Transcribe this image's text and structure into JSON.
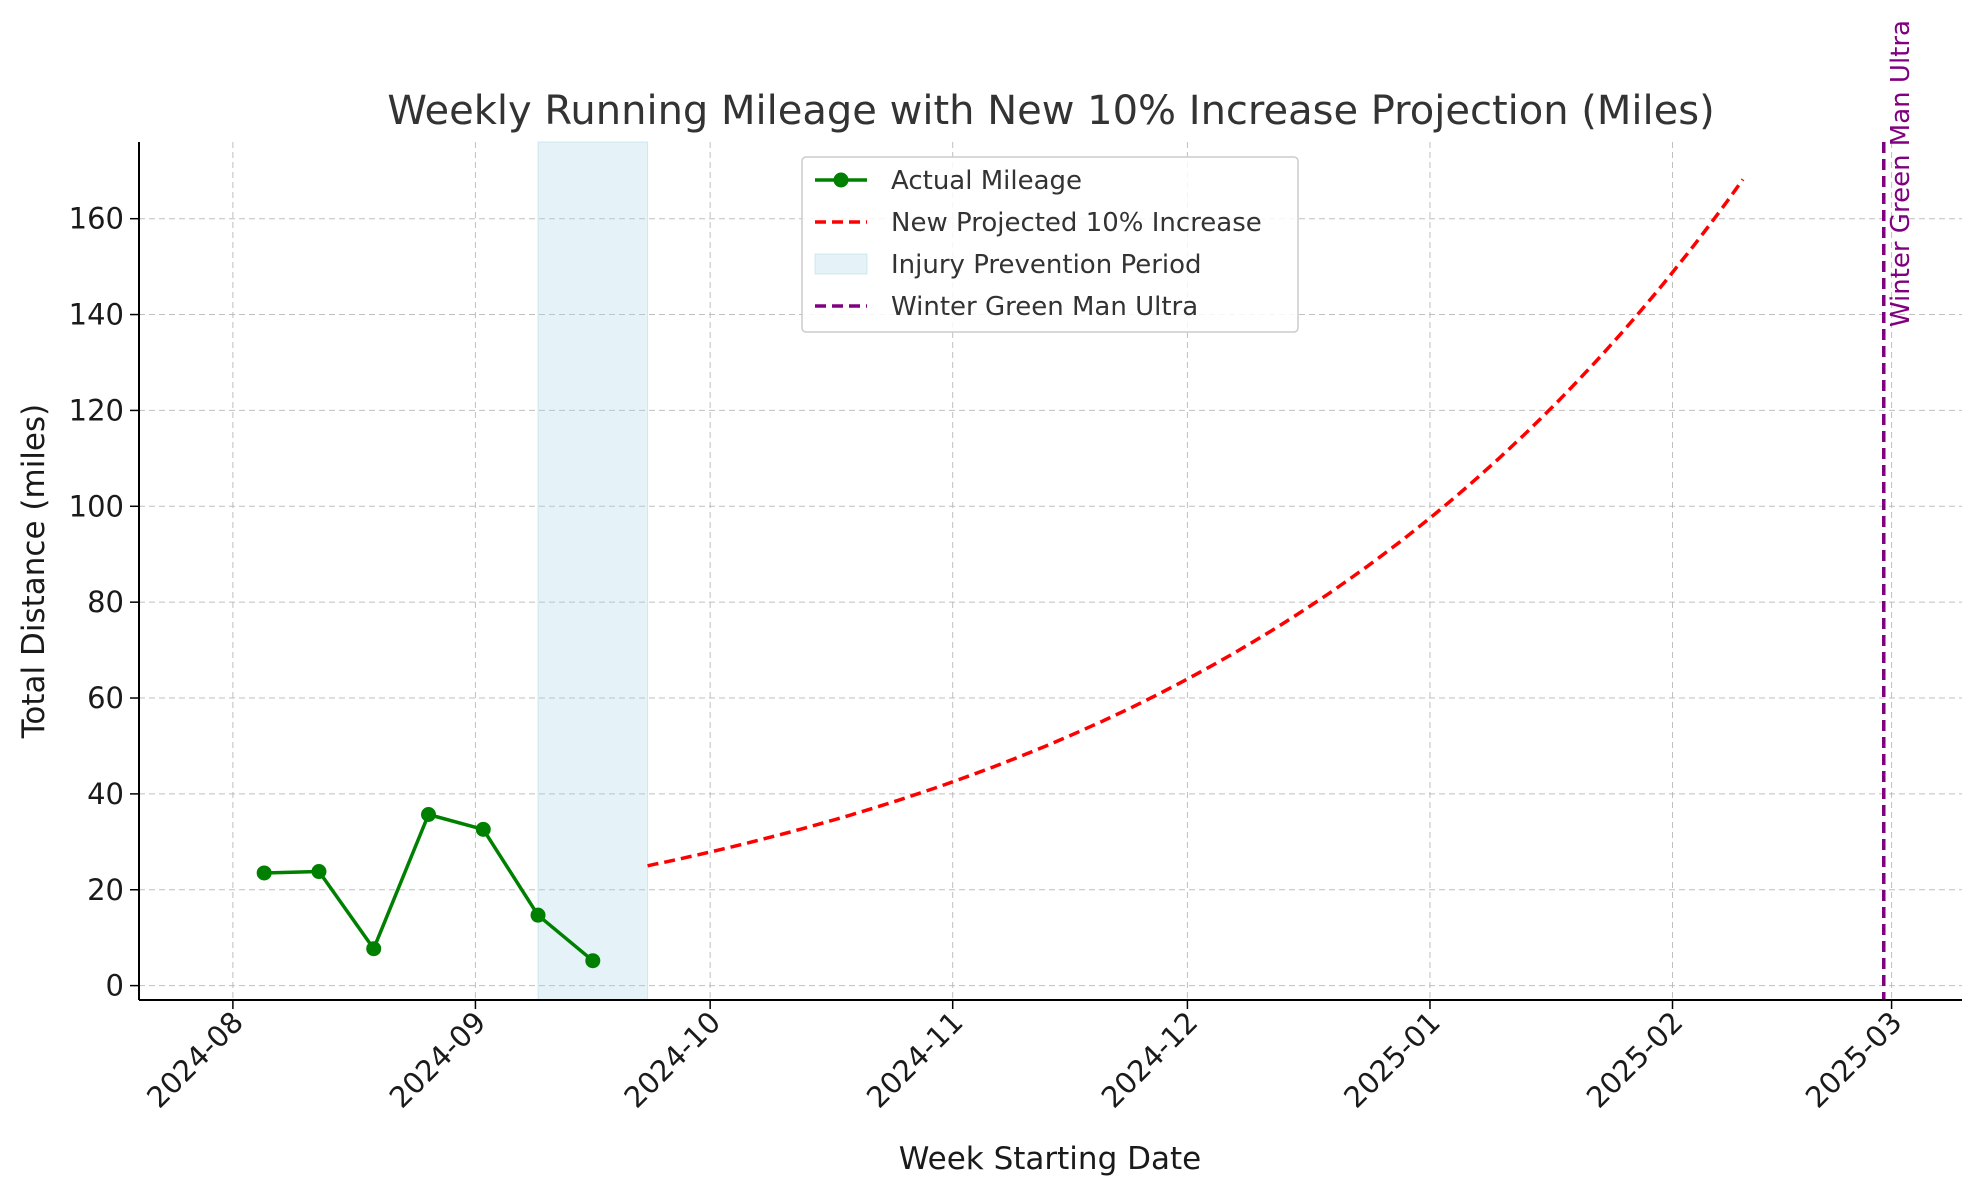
{
  "chart_data": {
    "type": "line",
    "title": "Weekly Running Mileage with New 10% Increase Projection (Miles)",
    "xlabel": "Week Starting Date",
    "ylabel": "Total Distance (miles)",
    "x_axis_type": "date",
    "xlim": [
      "2024-07-20",
      "2025-03-10"
    ],
    "ylim": [
      -3,
      176
    ],
    "x_ticks": [
      "2024-08",
      "2024-09",
      "2024-10",
      "2024-11",
      "2024-12",
      "2025-01",
      "2025-02",
      "2025-03"
    ],
    "y_ticks": [
      0,
      20,
      40,
      60,
      80,
      100,
      120,
      140,
      160
    ],
    "grid": true,
    "legend_position": "top-center",
    "legend": [
      {
        "label": "Actual Mileage",
        "style": "line-marker"
      },
      {
        "label": "New Projected 10% Increase",
        "style": "dashed"
      },
      {
        "label": "Injury Prevention Period",
        "style": "patch"
      },
      {
        "label": "Winter Green Man Ultra",
        "style": "dashed"
      }
    ],
    "series": [
      {
        "name": "Actual Mileage",
        "color": "#008000",
        "style": "solid-markers",
        "points": [
          {
            "x": "2024-08-05",
            "y": 23.5
          },
          {
            "x": "2024-08-12",
            "y": 23.8
          },
          {
            "x": "2024-08-19",
            "y": 7.7
          },
          {
            "x": "2024-08-26",
            "y": 35.7
          },
          {
            "x": "2024-09-02",
            "y": 32.6
          },
          {
            "x": "2024-09-09",
            "y": 14.7
          },
          {
            "x": "2024-09-16",
            "y": 5.2
          }
        ]
      },
      {
        "name": "New Projected 10% Increase",
        "color": "#ff0000",
        "style": "dashed",
        "start_date": "2024-09-23",
        "end_date": "2025-02-10",
        "start_value": 25,
        "weekly_growth": 0.1
      }
    ],
    "shaded_region": {
      "label": "Injury Prevention Period",
      "start": "2024-09-09",
      "end": "2024-09-23",
      "color": "#add8e6"
    },
    "vline": {
      "label": "Winter Green Man Ultra",
      "x": "2025-02-28",
      "color": "#800080"
    }
  }
}
